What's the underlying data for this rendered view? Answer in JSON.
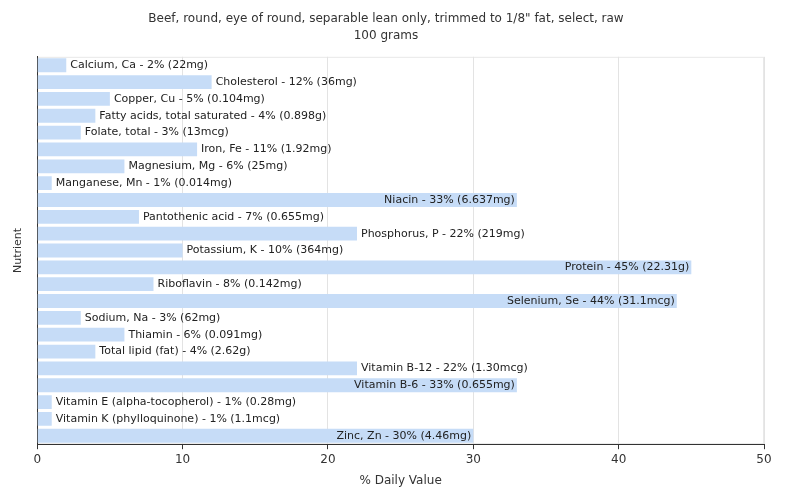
{
  "chart_data": {
    "type": "bar",
    "orientation": "horizontal",
    "title": "Beef, round, eye of round, separable lean only, trimmed to 1/8\" fat, select, raw",
    "subtitle": "100 grams",
    "x_label": "% Daily Value",
    "y_label": "Nutrient",
    "categories": [
      null,
      null,
      null,
      null,
      null,
      null,
      null,
      null,
      null,
      null,
      null,
      null,
      null,
      null,
      null,
      null,
      null,
      null,
      null,
      null,
      null,
      null,
      null
    ],
    "values": [
      2,
      12,
      5,
      4,
      3,
      11,
      6,
      1,
      33,
      7,
      22,
      10,
      45,
      8,
      44,
      3,
      6,
      4,
      22,
      33,
      1,
      1,
      30
    ],
    "value_labels": [
      "Calcium, Ca - 2% (22mg)",
      "Cholesterol - 12% (36mg)",
      "Copper, Cu - 5% (0.104mg)",
      "Fatty acids, total saturated - 4% (0.898g)",
      "Folate, total - 3% (13mcg)",
      "Iron, Fe - 11% (1.92mg)",
      "Magnesium, Mg - 6% (25mg)",
      "Manganese, Mn - 1% (0.014mg)",
      "Niacin - 33% (6.637mg)",
      "Pantothenic acid - 7% (0.655mg)",
      "Phosphorus, P - 22% (219mg)",
      "Potassium, K - 10% (364mg)",
      "Protein - 45% (22.31g)",
      "Riboflavin - 8% (0.142mg)",
      "Selenium, Se - 44% (31.1mcg)",
      "Sodium, Na - 3% (62mg)",
      "Thiamin - 6% (0.091mg)",
      "Total lipid (fat) - 4% (2.62g)",
      "Vitamin B-12 - 22% (1.30mcg)",
      "Vitamin B-6 - 33% (0.655mg)",
      "Vitamin E (alpha-tocopherol) - 1% (0.28mg)",
      "Vitamin K (phylloquinone) - 1% (1.1mcg)",
      "Zinc, Zn - 30% (4.46mg)"
    ],
    "color": "#c6dcf7",
    "xlim": [
      0,
      50
    ],
    "xticks": [
      0,
      10,
      20,
      30,
      40,
      50
    ],
    "grid": true,
    "data_labels": true,
    "tick_labels": "x"
  }
}
